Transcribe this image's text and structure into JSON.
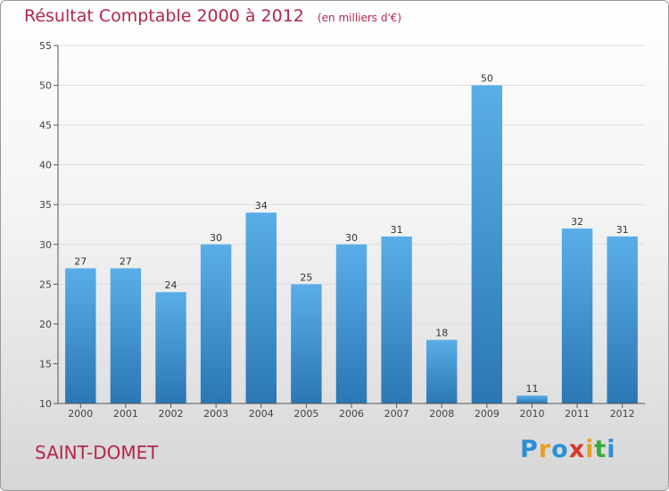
{
  "title": "Résultat Comptable 2000 à 2012",
  "unit": "(en milliers d'€)",
  "commune": "SAINT-DOMET",
  "logo": {
    "letters": [
      "P",
      "r",
      "o",
      "x",
      "i",
      "t",
      "i"
    ],
    "colors": [
      "#2a8fd6",
      "#e8a020",
      "#2a8fd6",
      "#d63a2a",
      "#e8a020",
      "#3aaa3a",
      "#2a8fd6"
    ]
  },
  "colors": {
    "bar_top": "#5aaee8",
    "bar_bottom": "#2a77b4",
    "title": "#b4264a",
    "grid": "#dddddd",
    "axis": "#555555"
  },
  "chart_data": {
    "type": "bar",
    "title": "Résultat Comptable 2000 à 2012",
    "xlabel": "",
    "ylabel": "",
    "ylim": [
      10,
      55
    ],
    "yticks": [
      10,
      15,
      20,
      25,
      30,
      35,
      40,
      45,
      50,
      55
    ],
    "categories": [
      "2000",
      "2001",
      "2002",
      "2003",
      "2004",
      "2005",
      "2006",
      "2007",
      "2008",
      "2009",
      "2010",
      "2011",
      "2012"
    ],
    "values": [
      27,
      27,
      24,
      30,
      34,
      25,
      30,
      31,
      18,
      50,
      11,
      32,
      31
    ],
    "grid": true
  }
}
